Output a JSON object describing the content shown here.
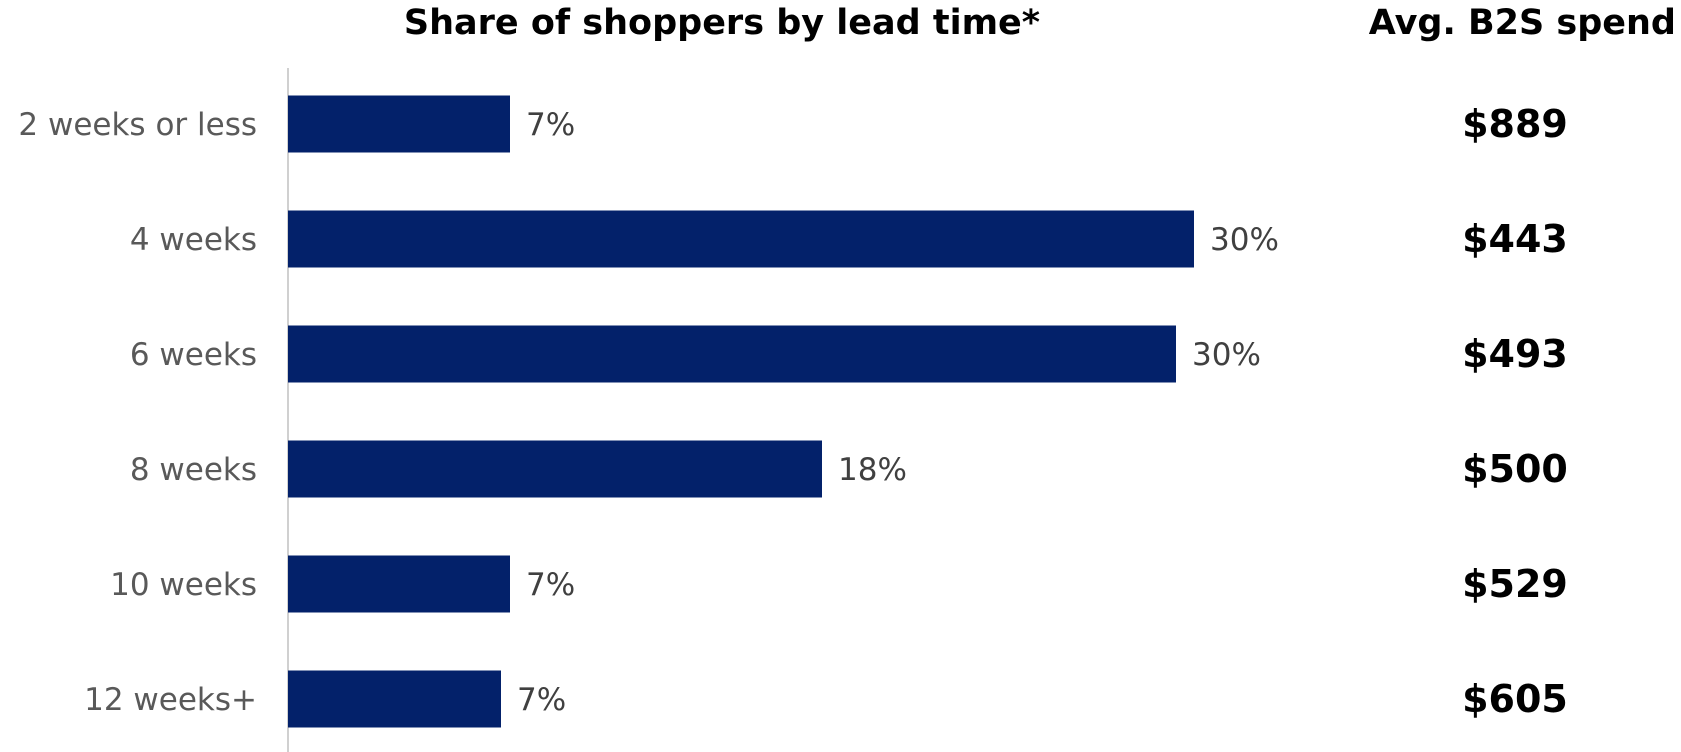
{
  "chart_data": {
    "type": "bar",
    "orientation": "horizontal",
    "title": "Share of shoppers by lead time*",
    "secondary_title": "Avg. B2S spend",
    "categories": [
      "2 weeks or less",
      "4 weeks",
      "6 weeks",
      "8 weeks",
      "10 weeks",
      "12 weeks+"
    ],
    "values": [
      7.4,
      30.2,
      29.6,
      17.8,
      7.4,
      7.1
    ],
    "data_labels": [
      "7%",
      "30%",
      "30%",
      "18%",
      "7%",
      "7%"
    ],
    "avg_spend": [
      "$889",
      "$443",
      "$493",
      "$500",
      "$529",
      "$605"
    ],
    "bar_color": "#03216A",
    "xlim": [
      0,
      35
    ],
    "grid": false,
    "legend": "none"
  }
}
